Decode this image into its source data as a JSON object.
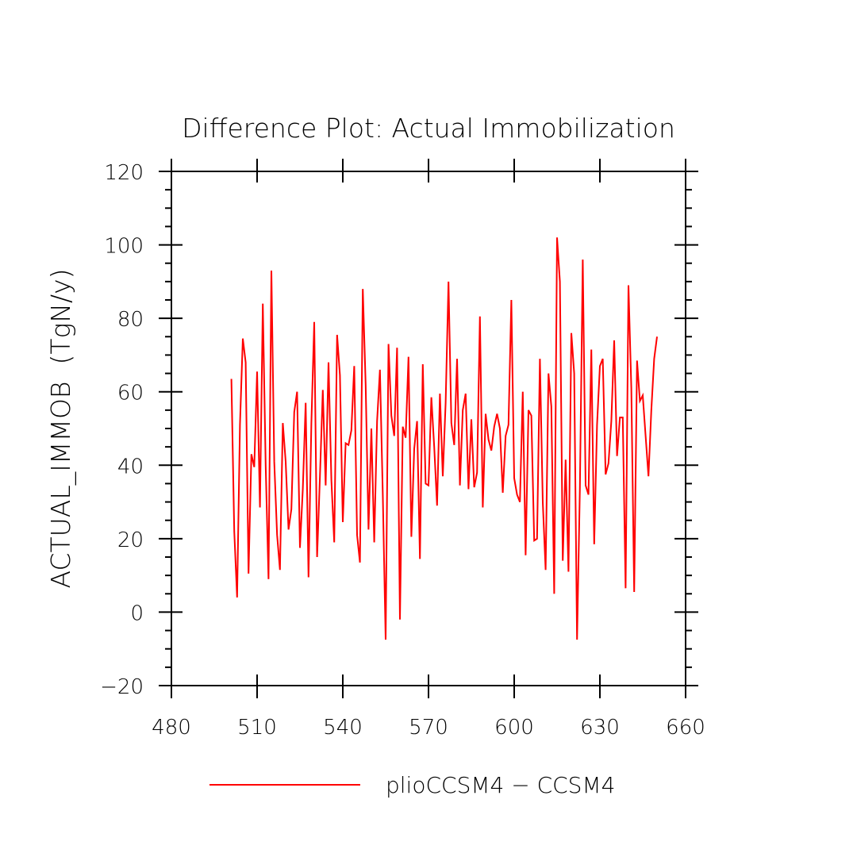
{
  "chart_data": {
    "type": "line",
    "title": "Difference Plot: Actual Immobilization",
    "xlabel": "",
    "ylabel": "ACTUAL_IMMOB  (TgN/y)",
    "xlim": [
      480,
      660
    ],
    "ylim": [
      -20,
      120
    ],
    "x_ticks": [
      480,
      510,
      540,
      570,
      600,
      630,
      660
    ],
    "x_tick_labels": [
      "480",
      "510",
      "540",
      "570",
      "600",
      "630",
      "660"
    ],
    "y_ticks": [
      -20,
      0,
      20,
      40,
      60,
      80,
      100,
      120
    ],
    "y_tick_labels": [
      "−20",
      "0",
      "20",
      "40",
      "60",
      "80",
      "100",
      "120"
    ],
    "grid": false,
    "legend_position": "bottom-center",
    "series": [
      {
        "name": "plioCCSM4 − CCSM4",
        "color": "#ff0000",
        "x": [
          501,
          502,
          503,
          504,
          505,
          506,
          507,
          508,
          509,
          510,
          511,
          512,
          513,
          514,
          515,
          516,
          517,
          518,
          519,
          520,
          521,
          522,
          523,
          524,
          525,
          526,
          527,
          528,
          529,
          530,
          531,
          532,
          533,
          534,
          535,
          536,
          537,
          538,
          539,
          540,
          541,
          542,
          543,
          544,
          545,
          546,
          547,
          548,
          549,
          550,
          551,
          552,
          553,
          554,
          555,
          556,
          557,
          558,
          559,
          560,
          561,
          562,
          563,
          564,
          565,
          566,
          567,
          568,
          569,
          570,
          571,
          572,
          573,
          574,
          575,
          576,
          577,
          578,
          579,
          580,
          581,
          582,
          583,
          584,
          585,
          586,
          587,
          588,
          589,
          590,
          591,
          592,
          593,
          594,
          595,
          596,
          597,
          598,
          599,
          600,
          601,
          602,
          603,
          604,
          605,
          606,
          607,
          608,
          609,
          610,
          611,
          612,
          613,
          614,
          615,
          616,
          617,
          618,
          619,
          620,
          621,
          622,
          623,
          624,
          625,
          626,
          627,
          628,
          629,
          630,
          631,
          632,
          633,
          634,
          635,
          636,
          637,
          638,
          639,
          640,
          641,
          642,
          643,
          644,
          645,
          646,
          647,
          648,
          649,
          650
        ],
        "values": [
          63.5,
          22,
          4,
          51,
          74.5,
          68,
          10.5,
          43,
          39.5,
          65.5,
          28.5,
          84,
          40,
          9,
          93,
          41,
          21,
          11.5,
          51.5,
          41,
          22.5,
          28,
          54.5,
          60,
          17.5,
          33.5,
          57,
          9.5,
          51.5,
          79,
          15,
          37,
          60.5,
          34.5,
          68,
          36,
          19,
          75.5,
          64.5,
          24.5,
          46,
          45.5,
          49.5,
          67,
          21,
          13.5,
          88,
          62,
          22.5,
          50,
          19,
          52,
          66,
          32,
          -7.5,
          73,
          53.5,
          48,
          72,
          -2,
          50.5,
          47.5,
          69.5,
          20.5,
          44.5,
          52,
          14.5,
          67.5,
          35,
          34.5,
          58.5,
          45,
          29,
          59.5,
          37,
          57,
          90,
          51.5,
          45.5,
          69,
          34.5,
          55,
          59.5,
          33.5,
          52.5,
          34,
          38,
          80.5,
          28.5,
          54,
          47,
          44,
          50.5,
          54,
          50,
          32.5,
          48,
          51,
          85,
          36.5,
          32,
          30,
          60,
          15.5,
          55,
          53.5,
          19.5,
          20,
          69,
          30,
          11.5,
          65,
          56,
          5,
          102,
          90,
          14,
          41.5,
          11,
          76,
          65,
          -7.5,
          34,
          96,
          34.5,
          32,
          71.5,
          18.5,
          51,
          67,
          69,
          37.5,
          40.5,
          52,
          74,
          42.5,
          53,
          53,
          6.5,
          89,
          61,
          5.5,
          68.5,
          57.5,
          59,
          48,
          37,
          55,
          69,
          75
        ]
      }
    ]
  }
}
